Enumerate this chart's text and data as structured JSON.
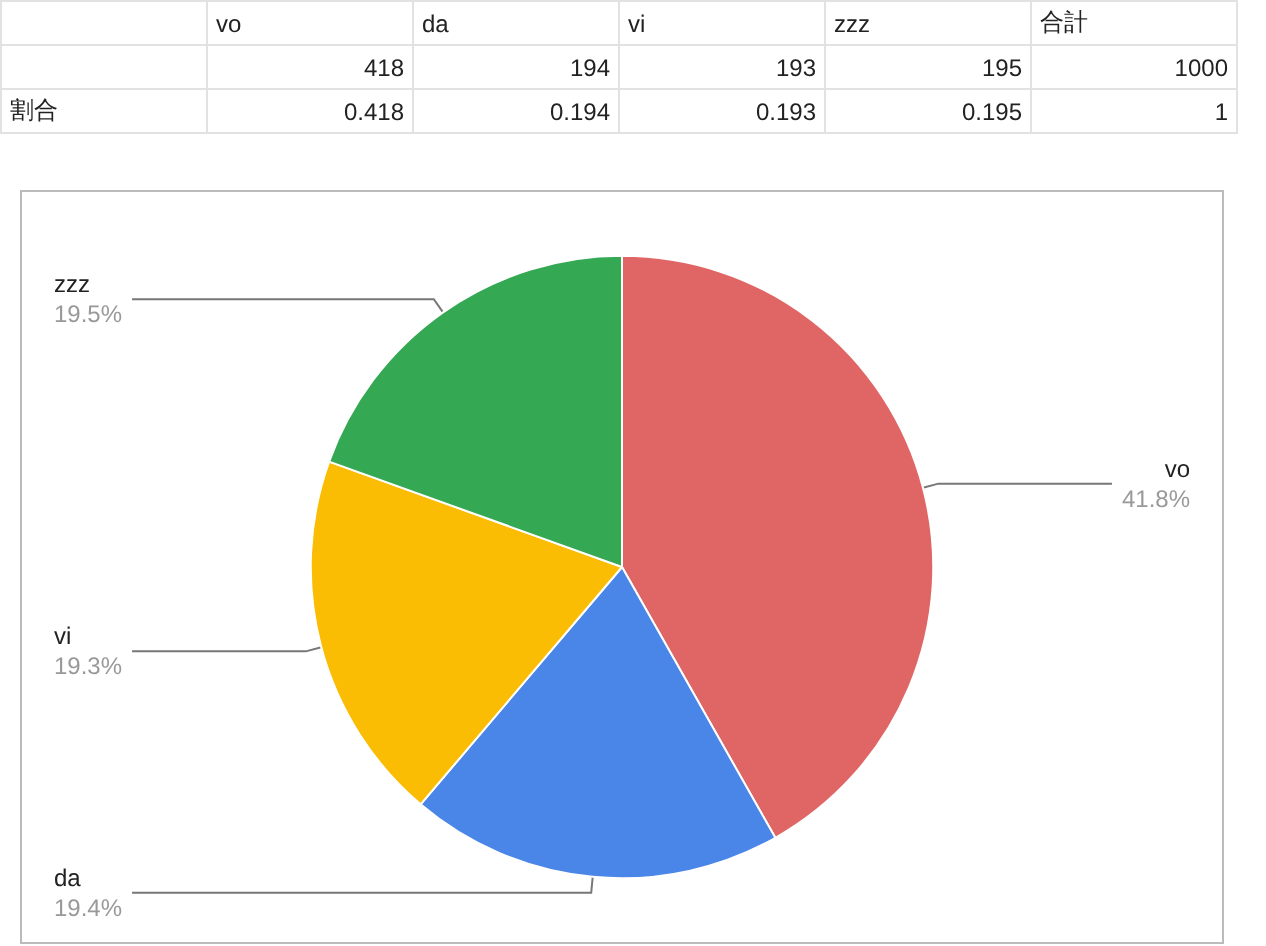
{
  "chart_data": {
    "type": "pie",
    "categories": [
      "vo",
      "da",
      "vi",
      "zzz"
    ],
    "values": [
      41.8,
      19.4,
      19.3,
      19.5
    ],
    "colors": [
      "#e06666",
      "#4a86e8",
      "#fbbc04",
      "#34a853"
    ],
    "value_labels": [
      "41.8%",
      "19.4%",
      "19.3%",
      "19.5%"
    ],
    "annotations": [
      "418",
      "194",
      "193",
      "195",
      "合計",
      "1000",
      "割合",
      "0.418",
      "0.194",
      "0.193",
      "0.195",
      "1"
    ],
    "legend": false
  }
}
